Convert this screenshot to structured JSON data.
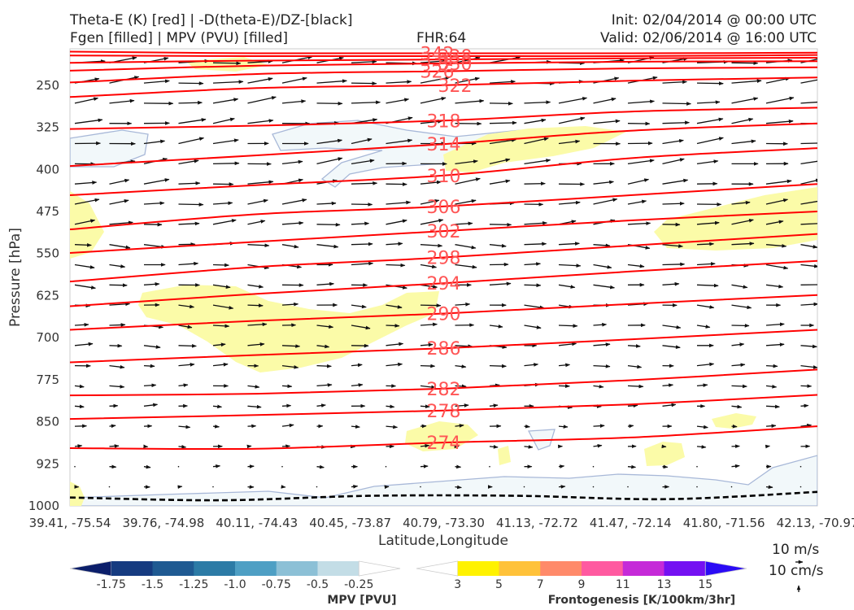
{
  "header": {
    "title_line1": "Theta-E (K) [red] | -D(theta-E)/DZ-[black]",
    "title_line2": "Fgen [filled] | MPV (PVU) [filled]",
    "fhr": "FHR:64",
    "init": "Init: 02/04/2014 @ 00:00 UTC",
    "valid": "Valid: 02/06/2014 @ 16:00 UTC"
  },
  "chart_data": {
    "type": "cross-section",
    "xlabel": "Latitude,Longitude",
    "ylabel": "Pressure [hPa]",
    "x_ticks": [
      "39.41, -75.54",
      "39.76, -74.98",
      "40.11, -74.43",
      "40.45, -73.87",
      "40.79, -73.30",
      "41.13, -72.72",
      "41.47, -72.14",
      "41.80, -71.56",
      "42.13, -70.97"
    ],
    "y_ticks": [
      250,
      325,
      400,
      475,
      550,
      625,
      700,
      775,
      850,
      925,
      1000
    ],
    "ylim": [
      1000,
      185
    ],
    "theta_e_contours": [
      {
        "label": "342",
        "y": [
          190,
          193,
          193,
          193,
          192
        ]
      },
      {
        "label": "338",
        "y": [
          197,
          198,
          198,
          198,
          196
        ]
      },
      {
        "label": "334",
        "y": [
          210,
          206,
          204,
          202,
          201
        ]
      },
      {
        "label": "330",
        "y": [
          224,
          215,
          211,
          208,
          207
        ]
      },
      {
        "label": "326",
        "y": [
          245,
          230,
          225,
          220,
          218
        ]
      },
      {
        "label": "322",
        "y": [
          271,
          255,
          250,
          242,
          236
        ]
      },
      {
        "label": "318",
        "y": [
          328,
          322,
          313,
          297,
          290
        ]
      },
      {
        "label": "314",
        "y": [
          394,
          375,
          355,
          331,
          318
        ]
      },
      {
        "label": "310",
        "y": [
          446,
          428,
          411,
          380,
          362
        ]
      },
      {
        "label": "306",
        "y": [
          507,
          480,
          466,
          446,
          426
        ]
      },
      {
        "label": "302",
        "y": [
          549,
          529,
          510,
          491,
          475
        ]
      },
      {
        "label": "298",
        "y": [
          600,
          574,
          557,
          536,
          515
        ]
      },
      {
        "label": "294",
        "y": [
          644,
          622,
          603,
          582,
          563
        ]
      },
      {
        "label": "290",
        "y": [
          686,
          670,
          657,
          640,
          624
        ]
      },
      {
        "label": "286",
        "y": [
          744,
          731,
          719,
          703,
          686
        ]
      },
      {
        "label": "282",
        "y": [
          803,
          800,
          791,
          776,
          757
        ]
      },
      {
        "label": "278",
        "y": [
          845,
          838,
          830,
          819,
          802
        ]
      },
      {
        "label": "274",
        "y": [
          897,
          898,
          887,
          878,
          858
        ]
      }
    ],
    "dtheta_dz_zero_line": {
      "y": [
        985,
        990,
        982,
        982,
        988,
        975
      ]
    },
    "wind_reference": {
      "horizontal": "10 m/s",
      "vertical": "10 cm/s"
    },
    "colorbars": [
      {
        "label": "MPV [PVU]",
        "ticks": [
          "-1.75",
          "-1.5",
          "-1.25",
          "-1.0",
          "-0.75",
          "-0.5",
          "-0.25"
        ],
        "colors": [
          "#0b1e6a",
          "#163b80",
          "#1f5a92",
          "#2c7ba6",
          "#4e9fc4",
          "#8cc0d6",
          "#c3dde6",
          "#ffffff"
        ]
      },
      {
        "label": "Frontogenesis [K/100km/3hr]",
        "ticks": [
          "3",
          "5",
          "7",
          "9",
          "11",
          "13",
          "15"
        ],
        "colors": [
          "#ffffff",
          "#fff200",
          "#ffc23a",
          "#ff8a6a",
          "#ff5aa0",
          "#c52ad8",
          "#7411f2",
          "#2b0bf5"
        ]
      }
    ]
  }
}
